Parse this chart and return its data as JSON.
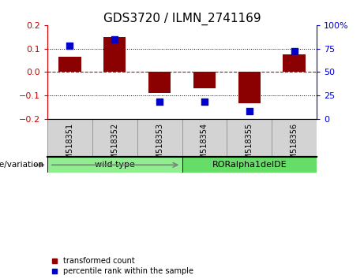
{
  "title": "GDS3720 / ILMN_2741169",
  "samples": [
    "GSM518351",
    "GSM518352",
    "GSM518353",
    "GSM518354",
    "GSM518355",
    "GSM518356"
  ],
  "transformed_count": [
    0.065,
    0.15,
    -0.09,
    -0.07,
    -0.135,
    0.075
  ],
  "percentile_rank": [
    78,
    85,
    18,
    18,
    8,
    72
  ],
  "groups": [
    {
      "label": "wild type",
      "indices": [
        0,
        1,
        2
      ],
      "color": "#90EE90"
    },
    {
      "label": "RORalpha1delDE",
      "indices": [
        3,
        4,
        5
      ],
      "color": "#66DD66"
    }
  ],
  "bar_color": "#8B0000",
  "dot_color": "#0000CC",
  "left_ylim": [
    -0.2,
    0.2
  ],
  "right_ylim": [
    0,
    100
  ],
  "left_yticks": [
    -0.2,
    -0.1,
    0,
    0.1,
    0.2
  ],
  "right_yticks": [
    0,
    25,
    50,
    75,
    100
  ],
  "right_yticklabels": [
    "0",
    "25",
    "50",
    "75",
    "100%"
  ],
  "left_axis_color": "#CC0000",
  "right_axis_color": "#0000CC",
  "genotype_label": "genotype/variation",
  "legend_items": [
    {
      "label": "transformed count",
      "color": "#8B0000"
    },
    {
      "label": "percentile rank within the sample",
      "color": "#0000CC"
    }
  ],
  "title_fontsize": 11,
  "bar_width": 0.5,
  "dot_size": 40,
  "sample_fontsize": 7,
  "group_fontsize": 8,
  "legend_fontsize": 7,
  "genotype_fontsize": 7.5
}
